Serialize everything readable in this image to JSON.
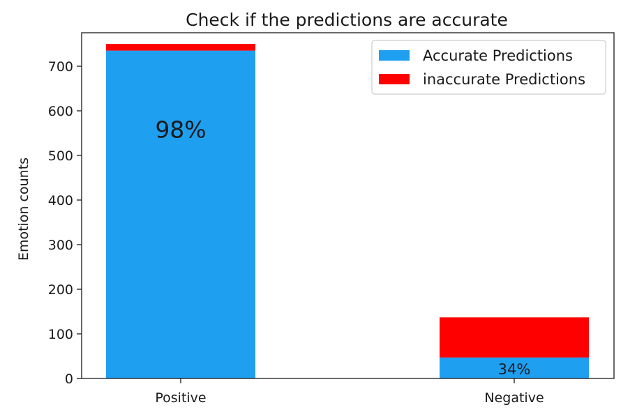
{
  "chart_data": {
    "type": "bar",
    "stacked": true,
    "title": "Check if the predictions are accurate",
    "xlabel": "",
    "ylabel": "Emotion counts",
    "categories": [
      "Positive",
      "Negative"
    ],
    "series": [
      {
        "name": "Accurate Predictions",
        "color": "#1f9ff0",
        "values": [
          735,
          47
        ]
      },
      {
        "name": "inaccurate Predictions",
        "color": "#ff0000",
        "values": [
          15,
          90
        ]
      }
    ],
    "annotations": [
      "98%",
      "34%"
    ],
    "ylim": [
      0,
      775
    ],
    "yticks": [
      0,
      100,
      200,
      300,
      400,
      500,
      600,
      700
    ],
    "legend": "upper right",
    "grid": false
  }
}
